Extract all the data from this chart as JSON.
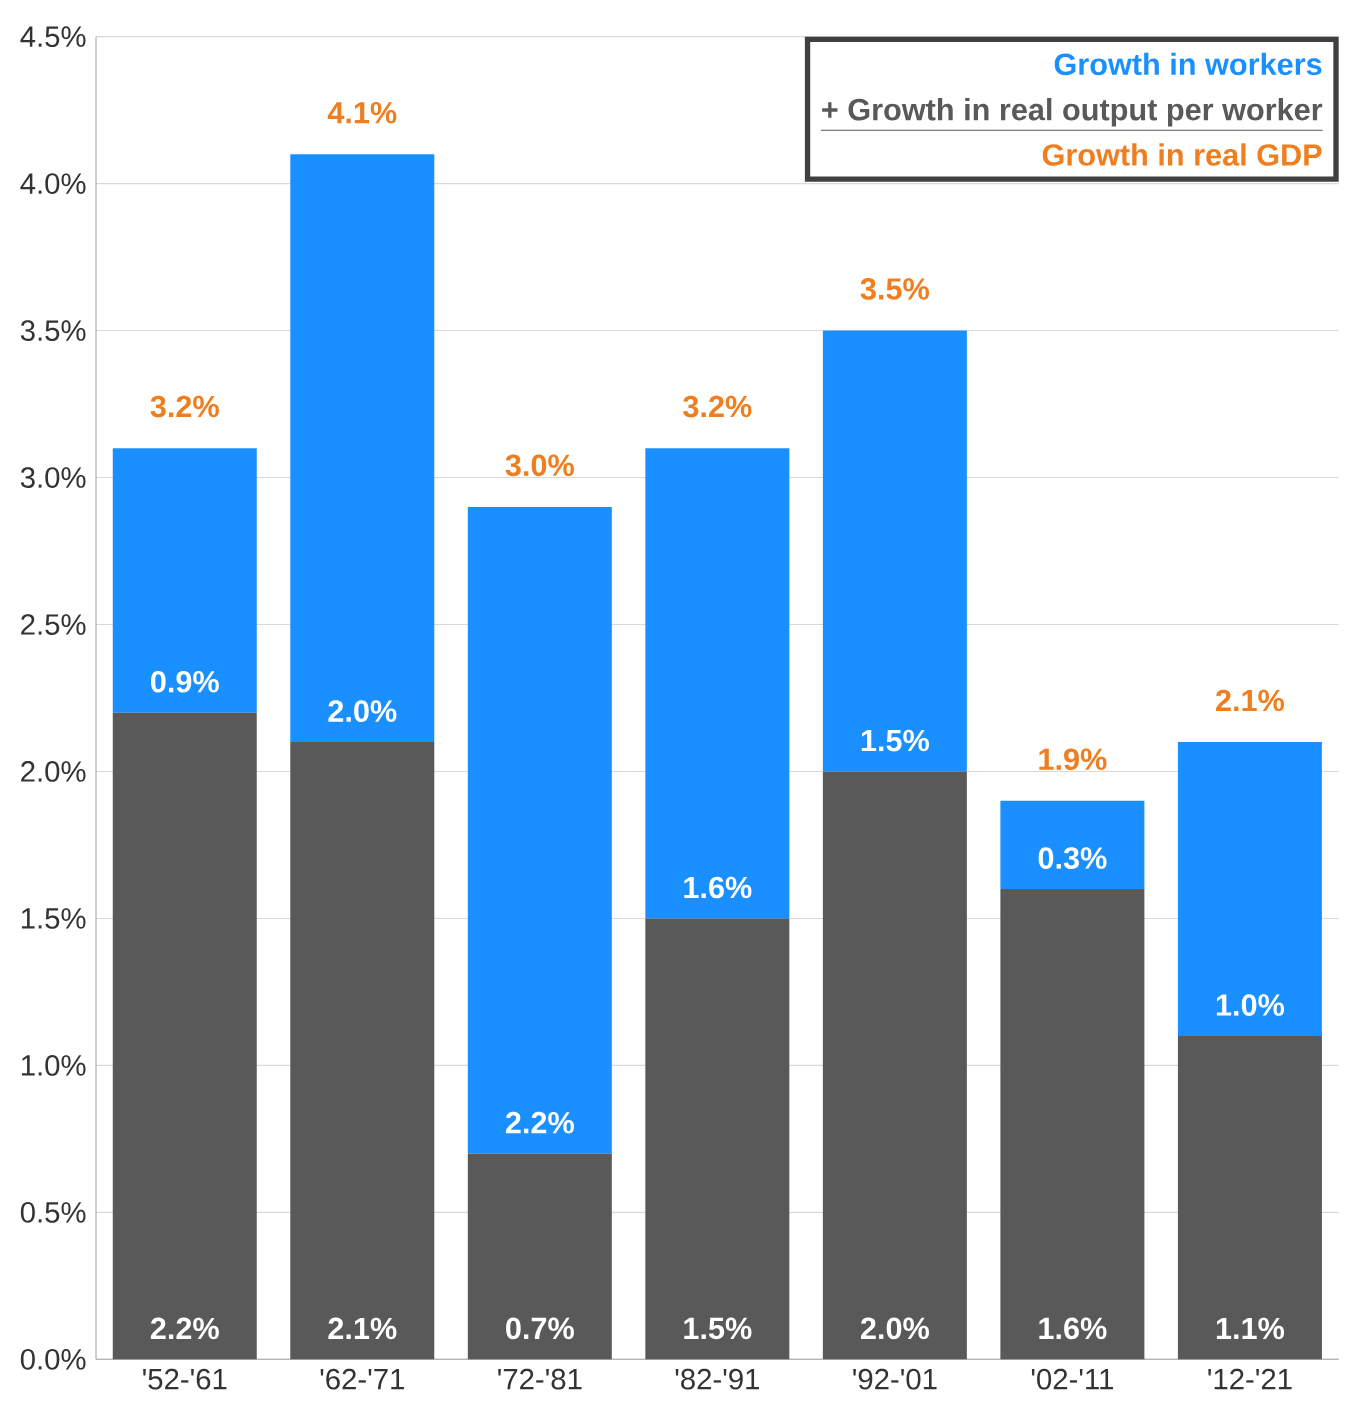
{
  "chart_data": {
    "type": "bar",
    "stacked": true,
    "categories": [
      "'52-'61",
      "'62-'71",
      "'72-'81",
      "'82-'91",
      "'92-'01",
      "'02-'11",
      "'12-'21"
    ],
    "series": [
      {
        "name": "+ Growth in real output per worker",
        "color": "#595959",
        "values": [
          2.2,
          2.1,
          0.7,
          1.5,
          2.0,
          1.6,
          1.1
        ],
        "value_labels": [
          "2.2%",
          "2.1%",
          "0.7%",
          "1.5%",
          "2.0%",
          "1.6%",
          "1.1%"
        ]
      },
      {
        "name": "Growth in workers",
        "color": "#1a8fff",
        "values": [
          0.9,
          2.0,
          2.2,
          1.6,
          1.5,
          0.3,
          1.0
        ],
        "value_labels": [
          "0.9%",
          "2.0%",
          "2.2%",
          "1.6%",
          "1.5%",
          "0.3%",
          "1.0%"
        ]
      }
    ],
    "totals": [
      "3.2%",
      "4.1%",
      "3.0%",
      "3.2%",
      "3.5%",
      "1.9%",
      "2.1%"
    ],
    "annotations": [
      "Growth in real GDP"
    ],
    "ylim": [
      0,
      4.5
    ],
    "yticks": [
      {
        "value": 0,
        "label": "0.0%"
      },
      {
        "value": 0.5,
        "label": "0.5%"
      },
      {
        "value": 1.0,
        "label": "1.0%"
      },
      {
        "value": 1.5,
        "label": "1.5%"
      },
      {
        "value": 2.0,
        "label": "2.0%"
      },
      {
        "value": 2.5,
        "label": "2.5%"
      },
      {
        "value": 3.0,
        "label": "3.0%"
      },
      {
        "value": 3.5,
        "label": "3.5%"
      },
      {
        "value": 4.0,
        "label": "4.0%"
      },
      {
        "value": 4.5,
        "label": "4.5%"
      }
    ],
    "grid": "y",
    "legend": "top right"
  }
}
